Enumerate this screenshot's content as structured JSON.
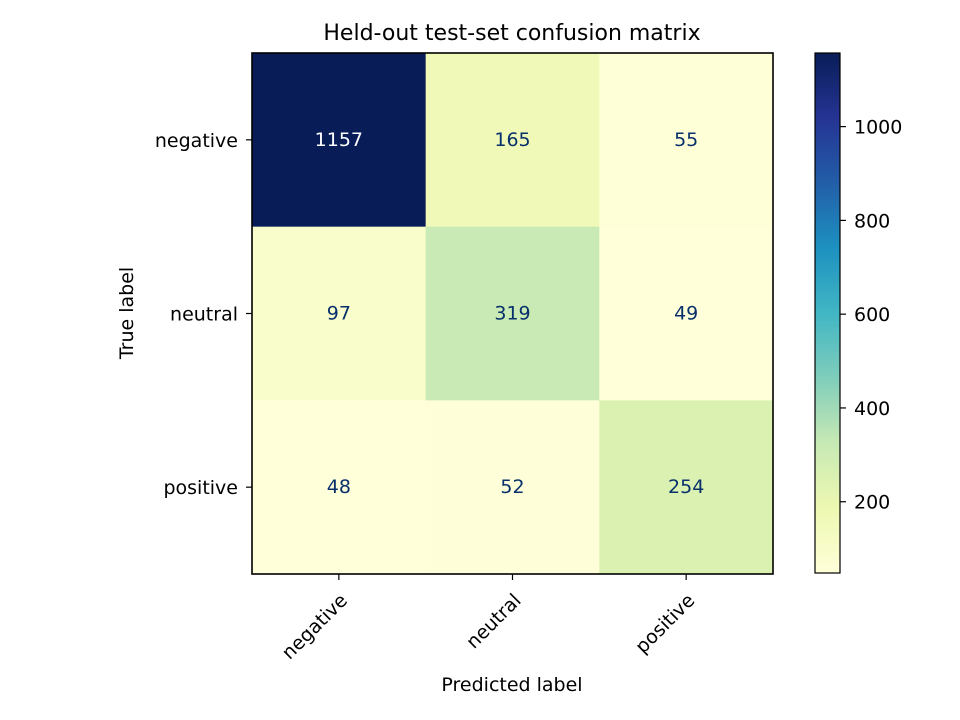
{
  "chart_data": {
    "type": "heatmap",
    "title": "Held-out test-set confusion matrix",
    "xlabel": "Predicted label",
    "ylabel": "True label",
    "x_categories": [
      "negative",
      "neutral",
      "positive"
    ],
    "y_categories": [
      "negative",
      "neutral",
      "positive"
    ],
    "values": [
      [
        1157,
        165,
        55
      ],
      [
        97,
        319,
        49
      ],
      [
        48,
        52,
        254
      ]
    ],
    "colormap": "YlGnBu",
    "colorbar": {
      "range": [
        48,
        1157
      ],
      "ticks": [
        200,
        400,
        600,
        800,
        1000
      ]
    },
    "text_color": "#08306b"
  }
}
